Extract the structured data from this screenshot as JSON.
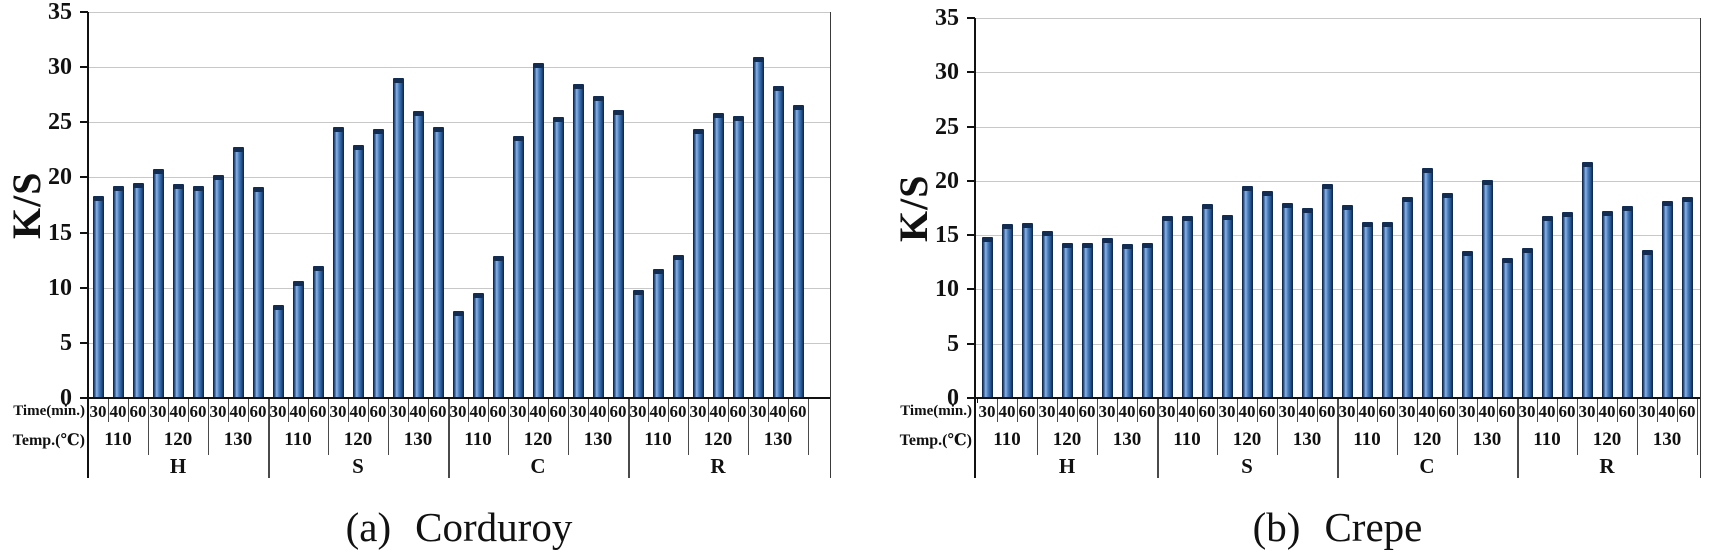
{
  "ylabel": "K/S",
  "x_axis": {
    "time_header": "Time(min.)",
    "temp_header": "Temp.(℃)",
    "times": [
      "30",
      "40",
      "60"
    ],
    "temps": [
      "110",
      "120",
      "130"
    ],
    "groups": [
      "H",
      "S",
      "C",
      "R"
    ]
  },
  "colors": {
    "bar_fill": "#3e72b4",
    "bar_highlight": "#8fb4e2",
    "bar_shadow": "#1d4273",
    "bar_border": "#122a4e",
    "bar_cap": "#132c52",
    "gridline": "#c8c8c8",
    "axis_line": "#111111"
  },
  "chart_data": [
    {
      "type": "bar",
      "title": "(a) Corduroy",
      "caption_prefix": "(a)",
      "caption_name": "Corduroy",
      "ylabel": "K/S",
      "ylim": [
        0,
        35
      ],
      "y_tick_step": 5,
      "y_ticks": [
        0,
        5,
        10,
        15,
        20,
        25,
        30,
        35
      ],
      "grid": true,
      "legend": "none",
      "x_levels": {
        "fabric": [
          "H",
          "S",
          "C",
          "R"
        ],
        "temp_c": [
          "110",
          "120",
          "130"
        ],
        "time_min": [
          "30",
          "40",
          "60"
        ]
      },
      "values_by_group": {
        "H": {
          "110": [
            18.3,
            19.2,
            19.5
          ],
          "120": [
            20.8,
            19.4,
            19.2
          ],
          "130": [
            20.2,
            22.8,
            19.1
          ]
        },
        "S": {
          "110": [
            8.4,
            10.6,
            12.0
          ],
          "120": [
            24.6,
            22.9,
            24.4
          ],
          "130": [
            29.0,
            26.0,
            24.6
          ]
        },
        "C": {
          "110": [
            7.9,
            9.5,
            12.9
          ],
          "120": [
            23.8,
            30.4,
            25.5
          ],
          "130": [
            28.5,
            27.4,
            26.1
          ]
        },
        "R": {
          "110": [
            9.8,
            11.7,
            13.0
          ],
          "120": [
            24.4,
            25.8,
            25.6
          ],
          "130": [
            30.9,
            28.3,
            26.6
          ]
        }
      }
    },
    {
      "type": "bar",
      "title": "(b) Crepe",
      "caption_prefix": "(b)",
      "caption_name": "Crepe",
      "ylabel": "K/S",
      "ylim": [
        0,
        35
      ],
      "y_tick_step": 5,
      "y_ticks": [
        0,
        5,
        10,
        15,
        20,
        25,
        30,
        35
      ],
      "grid": true,
      "legend": "none",
      "x_levels": {
        "fabric": [
          "H",
          "S",
          "C",
          "R"
        ],
        "temp_c": [
          "110",
          "120",
          "130"
        ],
        "time_min": [
          "30",
          "40",
          "60"
        ]
      },
      "values_by_group": {
        "H": {
          "110": [
            14.8,
            16.0,
            16.1
          ],
          "120": [
            15.4,
            14.3,
            14.3
          ],
          "130": [
            14.7,
            14.2,
            14.3
          ]
        },
        "S": {
          "110": [
            16.8,
            16.8,
            17.9
          ],
          "120": [
            16.9,
            19.5,
            19.1
          ],
          "130": [
            18.0,
            17.5,
            19.7
          ]
        },
        "C": {
          "110": [
            17.8,
            16.2,
            16.2
          ],
          "120": [
            18.5,
            21.2,
            18.9
          ],
          "130": [
            13.5,
            20.1,
            12.9
          ]
        },
        "R": {
          "110": [
            13.8,
            16.8,
            17.1
          ],
          "120": [
            21.7,
            17.2,
            17.7
          ],
          "130": [
            13.6,
            18.1,
            18.5
          ]
        }
      }
    }
  ]
}
